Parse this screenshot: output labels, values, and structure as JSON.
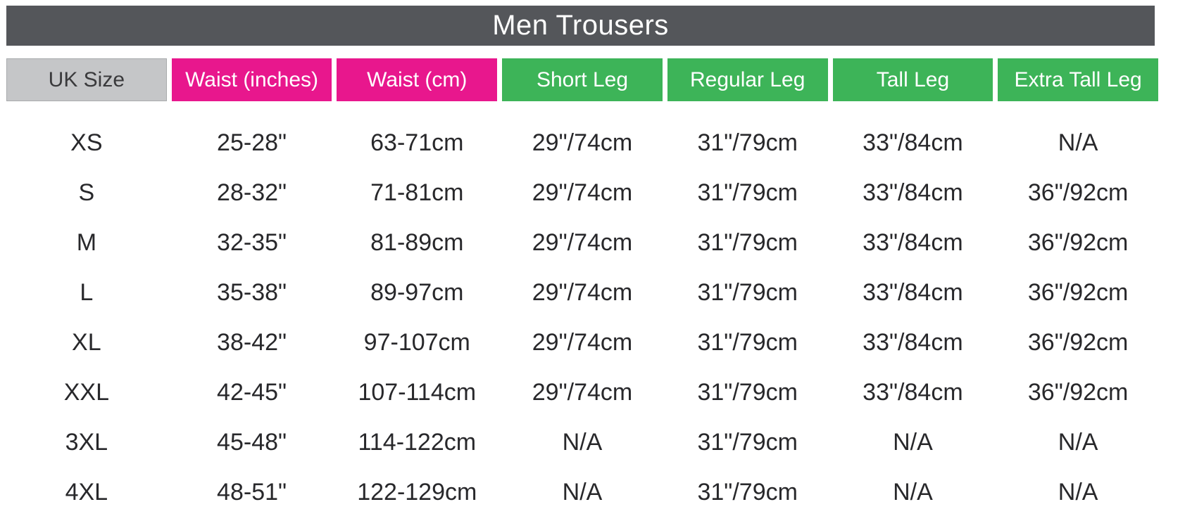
{
  "title": "Men Trousers",
  "colors": {
    "title_bar_bg": "#54565a",
    "title_text": "#ffffff",
    "uk_size_header_bg": "#c5c6c8",
    "uk_size_header_text": "#3a3a3c",
    "waist_header_bg": "#e8178d",
    "leg_header_bg": "#3db458",
    "header_text": "#ffffff",
    "body_text": "#28282b",
    "page_bg": "#ffffff"
  },
  "header_styles": [
    "gray",
    "pink",
    "pink",
    "green",
    "green",
    "green",
    "green"
  ],
  "chart_data": {
    "type": "table",
    "title": "Men Trousers",
    "columns": [
      "UK Size",
      "Waist (inches)",
      "Waist (cm)",
      "Short Leg",
      "Regular Leg",
      "Tall Leg",
      "Extra Tall Leg"
    ],
    "rows": [
      [
        "XS",
        "25-28\"",
        "63-71cm",
        "29\"/74cm",
        "31\"/79cm",
        "33\"/84cm",
        "N/A"
      ],
      [
        "S",
        "28-32\"",
        "71-81cm",
        "29\"/74cm",
        "31\"/79cm",
        "33\"/84cm",
        "36\"/92cm"
      ],
      [
        "M",
        "32-35\"",
        "81-89cm",
        "29\"/74cm",
        "31\"/79cm",
        "33\"/84cm",
        "36\"/92cm"
      ],
      [
        "L",
        "35-38\"",
        "89-97cm",
        "29\"/74cm",
        "31\"/79cm",
        "33\"/84cm",
        "36\"/92cm"
      ],
      [
        "XL",
        "38-42\"",
        "97-107cm",
        "29\"/74cm",
        "31\"/79cm",
        "33\"/84cm",
        "36\"/92cm"
      ],
      [
        "XXL",
        "42-45\"",
        "107-114cm",
        "29\"/74cm",
        "31\"/79cm",
        "33\"/84cm",
        "36\"/92cm"
      ],
      [
        "3XL",
        "45-48\"",
        "114-122cm",
        "N/A",
        "31\"/79cm",
        "N/A",
        "N/A"
      ],
      [
        "4XL",
        "48-51\"",
        "122-129cm",
        "N/A",
        "31\"/79cm",
        "N/A",
        "N/A"
      ]
    ]
  }
}
